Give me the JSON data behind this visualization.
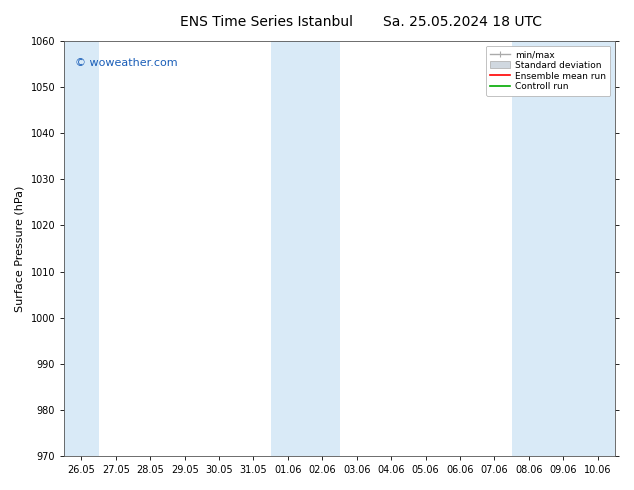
{
  "title_left": "ENS Time Series Istanbul",
  "title_right": "Sa. 25.05.2024 18 UTC",
  "ylabel": "Surface Pressure (hPa)",
  "ylim": [
    970,
    1060
  ],
  "yticks": [
    970,
    980,
    990,
    1000,
    1010,
    1020,
    1030,
    1040,
    1050,
    1060
  ],
  "x_labels": [
    "26.05",
    "27.05",
    "28.05",
    "29.05",
    "30.05",
    "31.05",
    "01.06",
    "02.06",
    "03.06",
    "04.06",
    "05.06",
    "06.06",
    "07.06",
    "08.06",
    "09.06",
    "10.06"
  ],
  "shade_columns": [
    0,
    6,
    7,
    13,
    14,
    15
  ],
  "shade_color": "#d9eaf7",
  "background_color": "#ffffff",
  "plot_bg_color": "#ffffff",
  "watermark": "© woweather.com",
  "legend_entries": [
    "min/max",
    "Standard deviation",
    "Ensemble mean run",
    "Controll run"
  ],
  "legend_colors_line": [
    "#aaaaaa",
    "#cccccc",
    "#ff0000",
    "#00aa00"
  ],
  "title_fontsize": 10,
  "axis_label_fontsize": 8,
  "tick_fontsize": 7,
  "watermark_color": "#1a5eb8",
  "watermark_fontsize": 8,
  "spine_color": "#555555"
}
